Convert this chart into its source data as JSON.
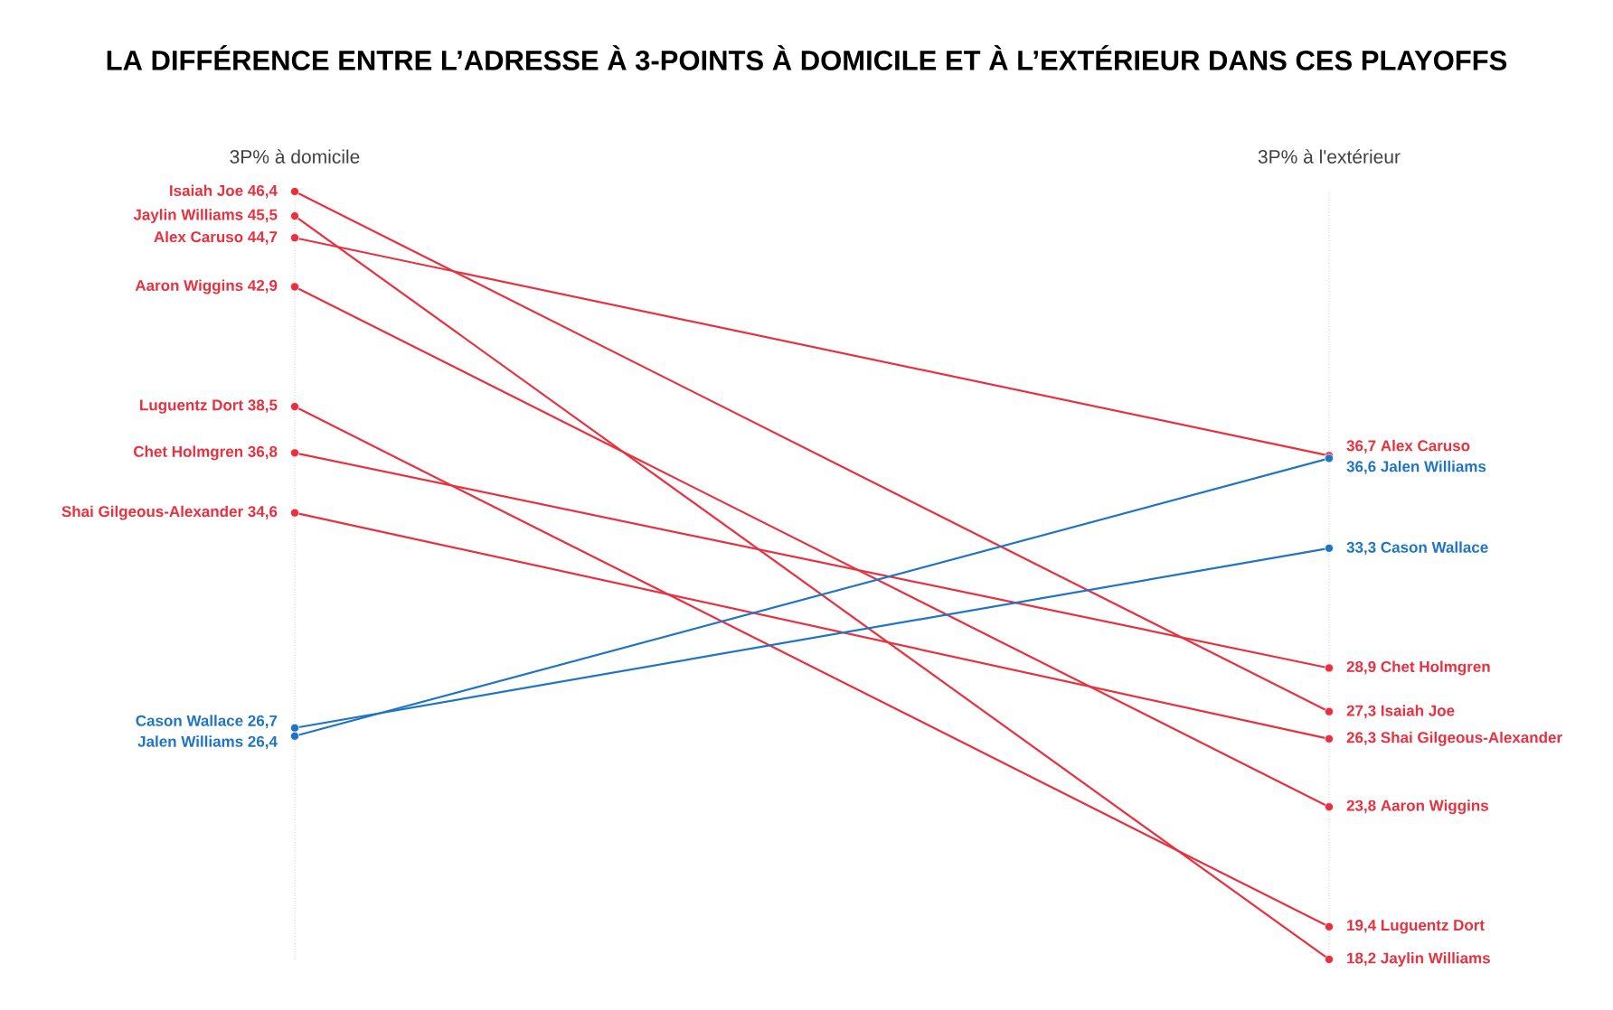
{
  "chart_data": {
    "type": "line",
    "title": "LA DIFFÉRENCE ENTRE L’ADRESSE À 3-POINTS À DOMICILE ET À L’EXTÉRIEUR DANS CES PLAYOFFS",
    "categories": [
      "3P% à domicile",
      "3P% à l'extérieur"
    ],
    "grid": "x",
    "legend": false,
    "marker": "circle",
    "series": [
      {
        "name": "Isaiah Joe",
        "color": "#e8303f",
        "values": [
          46.4,
          27.3
        ],
        "value_labels": [
          "46,4",
          "27,3"
        ]
      },
      {
        "name": "Jaylin Williams",
        "color": "#e8303f",
        "values": [
          45.5,
          18.2
        ],
        "value_labels": [
          "45,5",
          "18,2"
        ]
      },
      {
        "name": "Alex Caruso",
        "color": "#e8303f",
        "values": [
          44.7,
          36.7
        ],
        "value_labels": [
          "44,7",
          "36,7"
        ]
      },
      {
        "name": "Aaron Wiggins",
        "color": "#e8303f",
        "values": [
          42.9,
          23.8
        ],
        "value_labels": [
          "42,9",
          "23,8"
        ]
      },
      {
        "name": "Luguentz Dort",
        "color": "#e8303f",
        "values": [
          38.5,
          19.4
        ],
        "value_labels": [
          "38,5",
          "19,4"
        ]
      },
      {
        "name": "Chet Holmgren",
        "color": "#e8303f",
        "values": [
          36.8,
          28.9
        ],
        "value_labels": [
          "36,8",
          "28,9"
        ]
      },
      {
        "name": "Shai Gilgeous-Alexander",
        "color": "#e8303f",
        "values": [
          34.6,
          26.3
        ],
        "value_labels": [
          "34,6",
          "26,3"
        ]
      },
      {
        "name": "Cason Wallace",
        "color": "#1f74c4",
        "values": [
          26.7,
          33.3
        ],
        "value_labels": [
          "26,7",
          "33,3"
        ]
      },
      {
        "name": "Jalen Williams",
        "color": "#1f74c4",
        "values": [
          26.4,
          36.6
        ],
        "value_labels": [
          "26,4",
          "36,6"
        ]
      }
    ]
  }
}
